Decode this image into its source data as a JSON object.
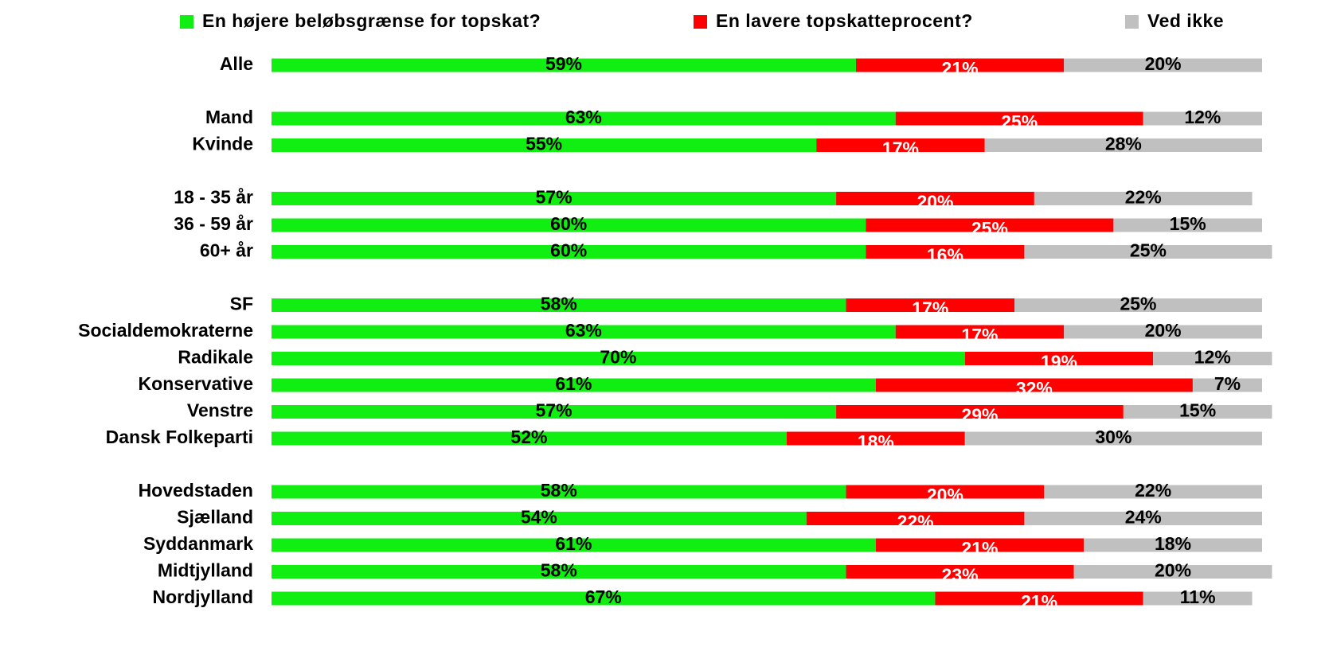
{
  "chart_data": {
    "type": "stacked-bar-horizontal",
    "categories": [
      "Alle",
      null,
      "Mand",
      "Kvinde",
      null,
      "18 - 35 år",
      "36 - 59 år",
      "60+ år",
      null,
      "SF",
      "Socialdemokraterne",
      "Radikale",
      "Konservative",
      "Venstre",
      "Dansk Folkeparti",
      null,
      "Hovedstaden",
      "Sjælland",
      "Syddanmark",
      "Midtjylland",
      "Nordjylland"
    ],
    "legend": "top",
    "series": [
      {
        "name": "En højere beløbsgrænse for topskat?",
        "color": "#11ee11",
        "label_color": "#000000",
        "values": [
          59,
          null,
          63,
          55,
          null,
          57,
          60,
          60,
          null,
          58,
          63,
          70,
          61,
          57,
          52,
          null,
          58,
          54,
          61,
          58,
          67
        ],
        "value_labels": [
          "59%",
          null,
          "63%",
          "55%",
          null,
          "57%",
          "60%",
          "60%",
          null,
          "58%",
          "63%",
          "70%",
          "61%",
          "57%",
          "52%",
          null,
          "58%",
          "54%",
          "61%",
          "58%",
          "67%"
        ]
      },
      {
        "name": "En lavere topskatteprocent?",
        "color": "#ff0000",
        "label_color": "#ffffff",
        "values": [
          21,
          null,
          25,
          17,
          null,
          20,
          25,
          16,
          null,
          17,
          17,
          19,
          32,
          29,
          18,
          null,
          20,
          22,
          21,
          23,
          21
        ],
        "value_labels": [
          "21%",
          null,
          "25%",
          "17%",
          null,
          "20%",
          "25%",
          "16%",
          null,
          "17%",
          "17%",
          "19%",
          "32%",
          "29%",
          "18%",
          null,
          "20%",
          "22%",
          "21%",
          "23%",
          "21%"
        ]
      },
      {
        "name": "Ved ikke",
        "color": "#c0c0c0",
        "label_color": "#000000",
        "values": [
          20,
          null,
          12,
          28,
          null,
          22,
          15,
          25,
          null,
          25,
          20,
          12,
          7,
          15,
          30,
          null,
          22,
          24,
          18,
          20,
          11
        ],
        "value_labels": [
          "20%",
          null,
          "12%",
          "28%",
          null,
          "22%",
          "15%",
          "25%",
          null,
          "25%",
          "20%",
          "12%",
          "7%",
          "15%",
          "30%",
          null,
          "22%",
          "24%",
          "18%",
          "20%",
          "11%"
        ]
      }
    ]
  }
}
